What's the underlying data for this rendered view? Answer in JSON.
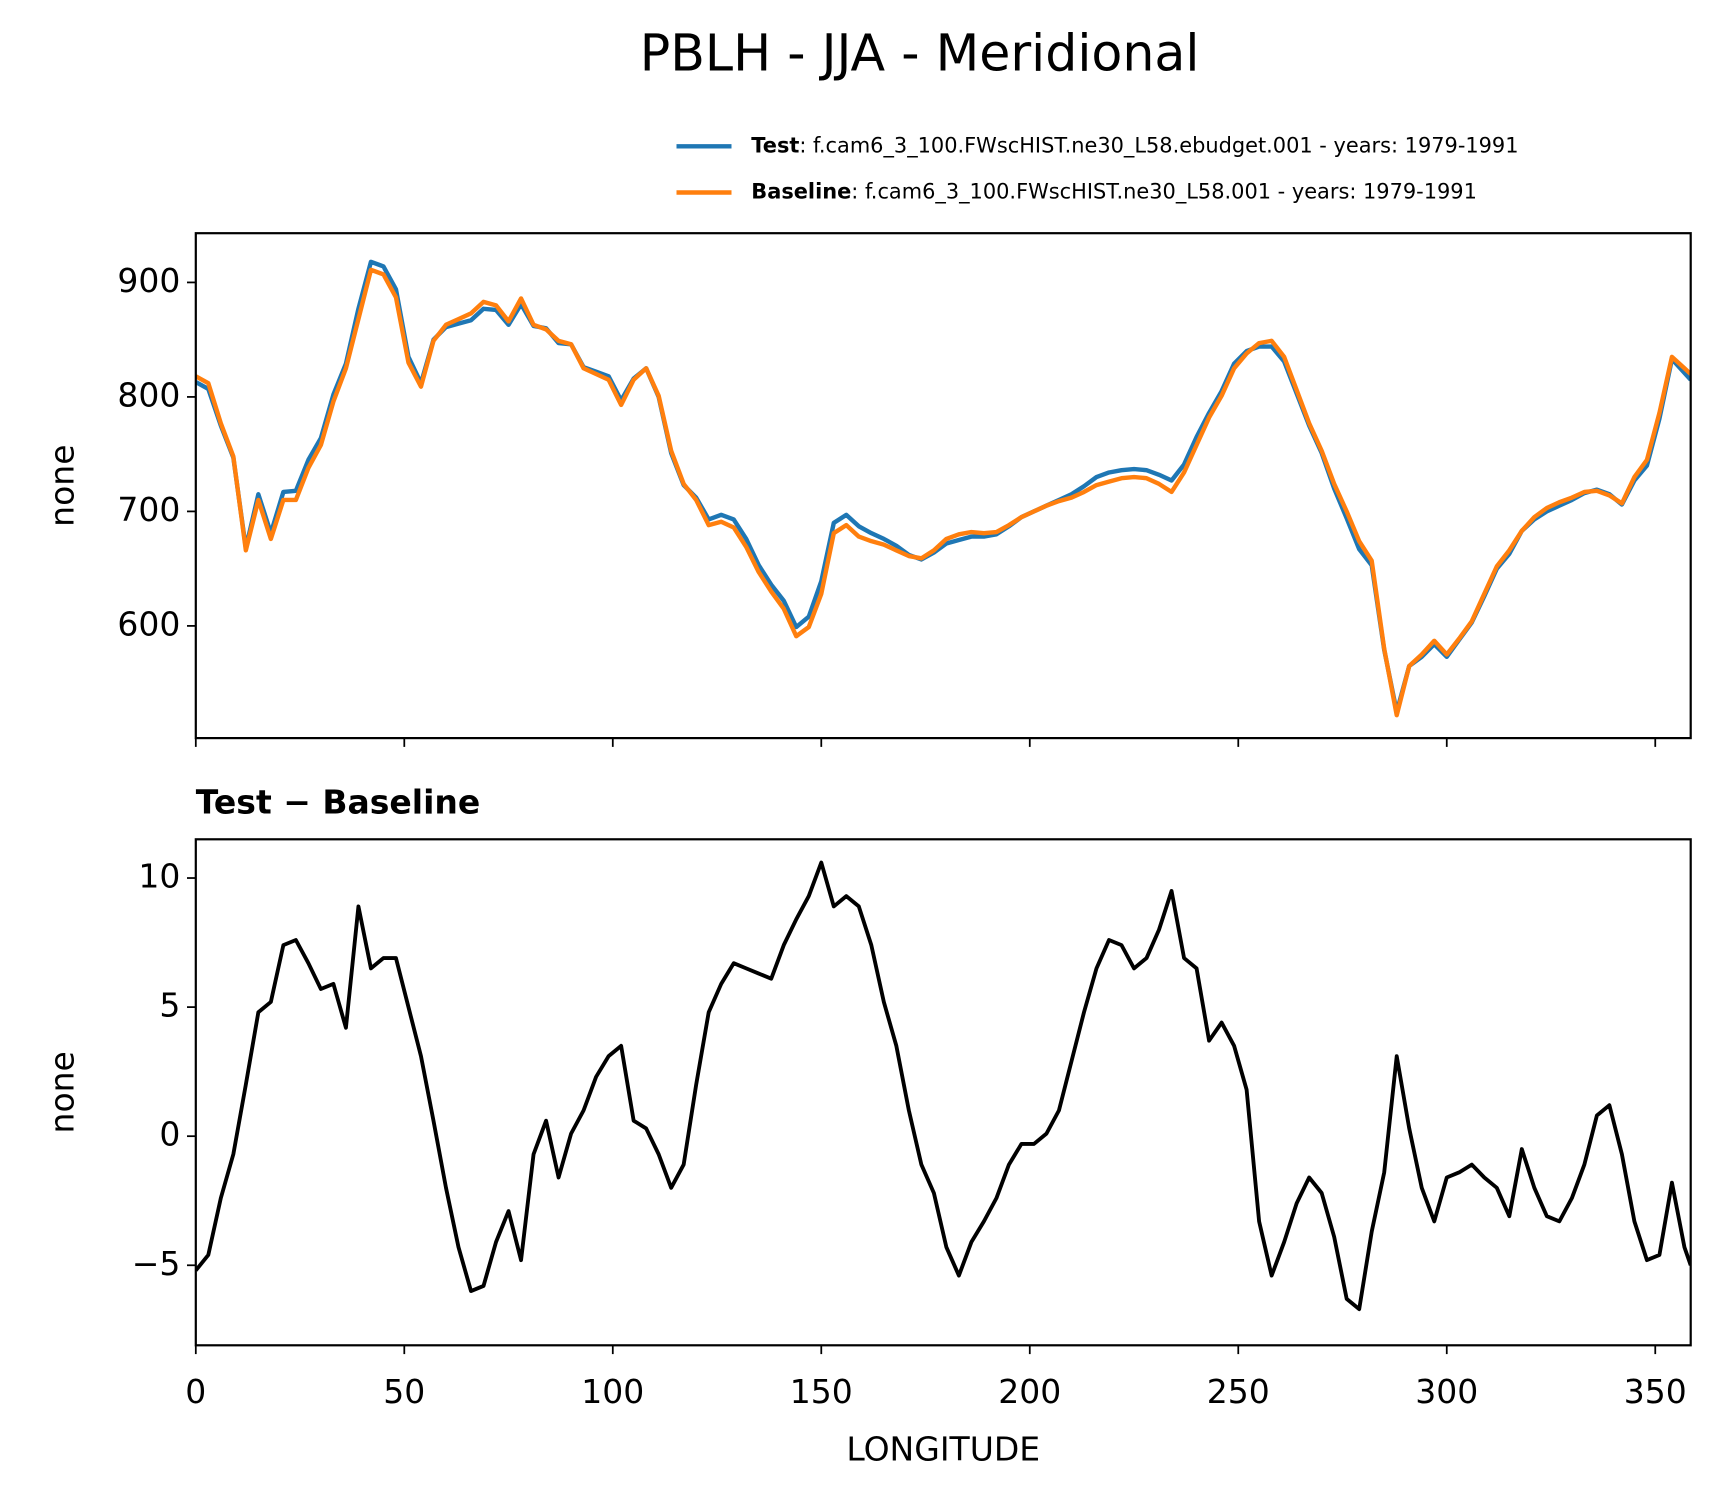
{
  "title": "PBLH - JJA - Meridional",
  "chart_data": [
    {
      "type": "line",
      "legend": "upper right",
      "ylabel": "none",
      "show_xtick_labels": false,
      "xlim": [
        0,
        358.5
      ],
      "ylim": [
        502,
        943
      ],
      "xticks": [
        0,
        50,
        100,
        150,
        200,
        250,
        300,
        350
      ],
      "yticks": [
        600,
        700,
        800,
        900
      ],
      "x": [
        0,
        3,
        6,
        9,
        12,
        15,
        18,
        21,
        24,
        27,
        30,
        33,
        36,
        39,
        42,
        45,
        48,
        51,
        54,
        57,
        60,
        63,
        66,
        69,
        72,
        75,
        78,
        81,
        84,
        87,
        90,
        93,
        96,
        99,
        102,
        105,
        108,
        111,
        114,
        117,
        120,
        123,
        126,
        129,
        132,
        135,
        138,
        141,
        144,
        147,
        150,
        153,
        156,
        159,
        162,
        165,
        168,
        171,
        174,
        177,
        180,
        183,
        186,
        189,
        192,
        195,
        198,
        201,
        204,
        207,
        210,
        213,
        216,
        219,
        222,
        225,
        228,
        231,
        234,
        237,
        240,
        243,
        246,
        249,
        252,
        255,
        258,
        261,
        264,
        267,
        270,
        273,
        276,
        279,
        282,
        285,
        288,
        291,
        294,
        297,
        300,
        303,
        306,
        309,
        312,
        315,
        318,
        321,
        324,
        327,
        330,
        333,
        336,
        339,
        342,
        345,
        348,
        351,
        354,
        357,
        358.5
      ],
      "series": [
        {
          "name": "Test",
          "description": ": f.cam6_3_100.FWscHIST.ne30_L58.ebudget.001 - years: 1979-1991",
          "color": "#1f77b4",
          "values": [
            813,
            807,
            775,
            747,
            668,
            715,
            681,
            717,
            718,
            745,
            764,
            802,
            829,
            877,
            918,
            914,
            894,
            835,
            812,
            850,
            861,
            864,
            867,
            877,
            876,
            863,
            881,
            862,
            860,
            847,
            846,
            826,
            822,
            818,
            797,
            816,
            825,
            800,
            751,
            723,
            712,
            693,
            697,
            693,
            676,
            653,
            636,
            622,
            599,
            608,
            639,
            690,
            697,
            687,
            681,
            676,
            670,
            662,
            658,
            664,
            672,
            675,
            678,
            678,
            680,
            687,
            695,
            700,
            705,
            710,
            715,
            722,
            730,
            734,
            736,
            737,
            736,
            732,
            727,
            741,
            765,
            786,
            805,
            829,
            840,
            844,
            844,
            831,
            803,
            775,
            751,
            720,
            694,
            667,
            653,
            579,
            525,
            565,
            573,
            584,
            573,
            588,
            603,
            626,
            650,
            663,
            683,
            693,
            700,
            705,
            710,
            716,
            719,
            715,
            706,
            727,
            740,
            781,
            833,
            821,
            815
          ]
        },
        {
          "name": "Baseline",
          "description": ": f.cam6_3_100.FWscHIST.ne30_L58.001 - years: 1979-1991",
          "color": "#ff7f0e",
          "values": [
            818,
            812,
            777,
            748,
            666,
            710,
            676,
            710,
            710,
            738,
            758,
            796,
            825,
            868,
            911,
            907,
            887,
            830,
            809,
            849,
            863,
            868,
            873,
            883,
            880,
            866,
            886,
            863,
            859,
            849,
            846,
            825,
            820,
            815,
            793,
            815,
            825,
            801,
            753,
            724,
            710,
            688,
            691,
            686,
            669,
            647,
            630,
            615,
            591,
            599,
            628,
            681,
            688,
            678,
            674,
            671,
            666,
            661,
            659,
            666,
            676,
            680,
            682,
            681,
            682,
            688,
            695,
            700,
            705,
            709,
            712,
            717,
            723,
            726,
            729,
            730,
            729,
            724,
            717,
            734,
            758,
            782,
            801,
            825,
            838,
            847,
            849,
            835,
            806,
            777,
            753,
            724,
            700,
            674,
            657,
            580,
            522,
            565,
            575,
            587,
            575,
            589,
            604,
            628,
            652,
            666,
            683,
            695,
            703,
            708,
            712,
            717,
            718,
            714,
            707,
            730,
            745,
            786,
            835,
            825,
            820
          ]
        }
      ]
    },
    {
      "type": "line",
      "title": "Test − Baseline",
      "xlabel": "LONGITUDE",
      "ylabel": "none",
      "color": "#000000",
      "xlim": [
        0,
        358.5
      ],
      "ylim": [
        -8.1,
        11.5
      ],
      "xticks": [
        0,
        50,
        100,
        150,
        200,
        250,
        300,
        350
      ],
      "yticks": [
        {
          "value": -5,
          "label": "−5"
        },
        0,
        5,
        10
      ],
      "x": [
        0,
        3,
        6,
        9,
        12,
        15,
        18,
        21,
        24,
        27,
        30,
        33,
        36,
        39,
        42,
        45,
        48,
        51,
        54,
        57,
        60,
        63,
        66,
        69,
        72,
        75,
        78,
        81,
        84,
        87,
        90,
        93,
        96,
        99,
        102,
        105,
        108,
        111,
        114,
        117,
        120,
        123,
        126,
        129,
        132,
        135,
        138,
        141,
        144,
        147,
        150,
        153,
        156,
        159,
        162,
        165,
        168,
        171,
        174,
        177,
        180,
        183,
        186,
        189,
        192,
        195,
        198,
        201,
        204,
        207,
        210,
        213,
        216,
        219,
        222,
        225,
        228,
        231,
        234,
        237,
        240,
        243,
        246,
        249,
        252,
        255,
        258,
        261,
        264,
        267,
        270,
        273,
        276,
        279,
        282,
        285,
        288,
        291,
        294,
        297,
        300,
        303,
        306,
        309,
        312,
        315,
        318,
        321,
        324,
        327,
        330,
        333,
        336,
        339,
        342,
        345,
        348,
        351,
        354,
        357,
        358.5
      ],
      "values": [
        -5.2,
        -4.6,
        -2.4,
        -0.7,
        2.0,
        4.8,
        5.2,
        7.4,
        7.6,
        6.7,
        5.7,
        5.9,
        4.2,
        8.9,
        6.5,
        6.9,
        6.9,
        5.0,
        3.1,
        0.6,
        -2.0,
        -4.3,
        -6.0,
        -5.8,
        -4.1,
        -2.9,
        -4.8,
        -0.7,
        0.6,
        -1.6,
        0.1,
        1.0,
        2.3,
        3.1,
        3.5,
        0.6,
        0.3,
        -0.7,
        -2.0,
        -1.1,
        2.0,
        4.8,
        5.9,
        6.7,
        6.5,
        6.3,
        6.1,
        7.4,
        8.4,
        9.3,
        10.6,
        8.9,
        9.3,
        8.9,
        7.4,
        5.2,
        3.5,
        1.0,
        -1.1,
        -2.2,
        -4.3,
        -5.4,
        -4.1,
        -3.3,
        -2.4,
        -1.1,
        -0.3,
        -0.3,
        0.1,
        1.0,
        2.9,
        4.8,
        6.5,
        7.6,
        7.4,
        6.5,
        6.9,
        8.0,
        9.5,
        6.9,
        6.5,
        3.7,
        4.4,
        3.5,
        1.8,
        -3.3,
        -5.4,
        -4.1,
        -2.6,
        -1.6,
        -2.2,
        -3.9,
        -6.3,
        -6.7,
        -3.7,
        -1.4,
        3.1,
        0.3,
        -2.0,
        -3.3,
        -1.6,
        -1.4,
        -1.1,
        -1.6,
        -2.0,
        -3.1,
        -0.5,
        -2.0,
        -3.1,
        -3.3,
        -2.4,
        -1.1,
        0.8,
        1.2,
        -0.7,
        -3.3,
        -4.8,
        -4.6,
        -1.8,
        -4.3,
        -5.0
      ]
    }
  ]
}
